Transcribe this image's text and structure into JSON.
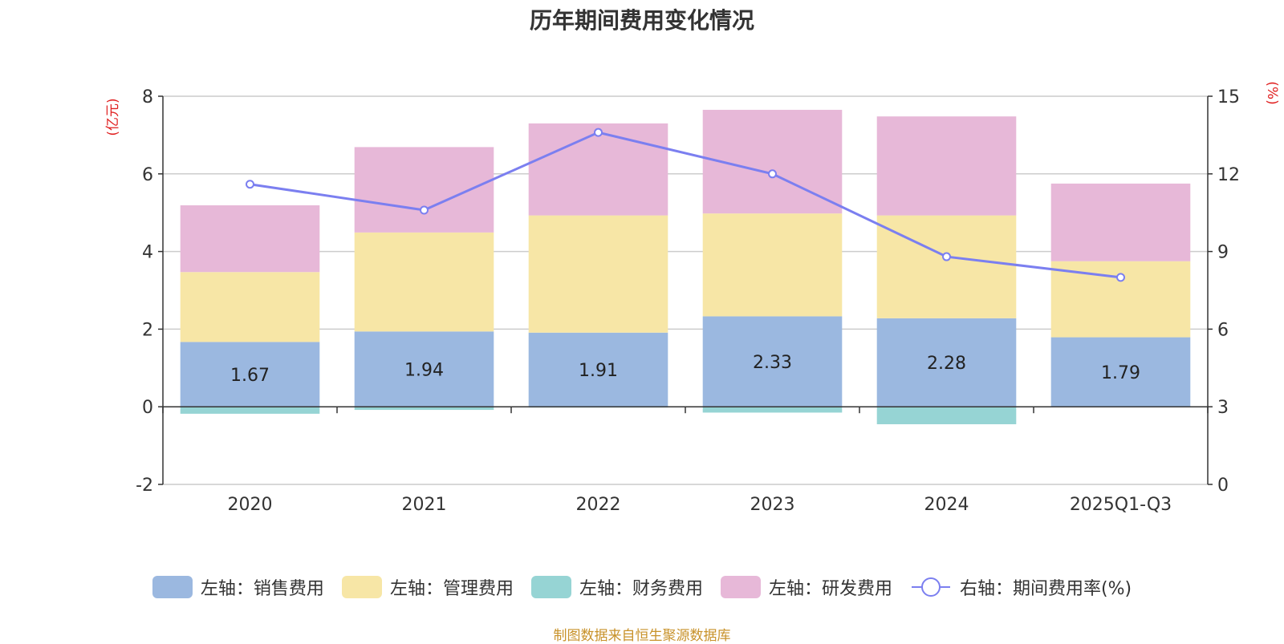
{
  "chart_data": {
    "type": "bar",
    "title": "历年期间费用变化情况",
    "categories": [
      "2020",
      "2021",
      "2022",
      "2023",
      "2024",
      "2025Q1-Q3"
    ],
    "left_axis": {
      "label": "(亿元)",
      "min": -2,
      "max": 8,
      "ticks": [
        -2,
        0,
        2,
        4,
        6,
        8
      ]
    },
    "right_axis": {
      "label": "(%)",
      "min": 0,
      "max": 15,
      "ticks": [
        0,
        3,
        6,
        9,
        12,
        15
      ]
    },
    "series": [
      {
        "name": "左轴：销售费用",
        "axis": "left",
        "kind": "bar",
        "color": "#9bb8e0",
        "values": [
          1.67,
          1.94,
          1.91,
          2.33,
          2.28,
          1.79
        ],
        "show_labels": true
      },
      {
        "name": "左轴：管理费用",
        "axis": "left",
        "kind": "bar",
        "color": "#f7e6a6",
        "values": [
          1.8,
          2.55,
          3.02,
          2.65,
          2.65,
          1.96
        ],
        "show_labels": false
      },
      {
        "name": "左轴：财务费用",
        "axis": "left",
        "kind": "bar",
        "color": "#96d4d4",
        "values": [
          -0.18,
          -0.08,
          -0.02,
          -0.15,
          -0.45,
          0.0
        ],
        "show_labels": false
      },
      {
        "name": "左轴：研发费用",
        "axis": "left",
        "kind": "bar",
        "color": "#e7b8d8",
        "values": [
          1.72,
          2.2,
          2.37,
          2.67,
          2.55,
          2.0
        ],
        "show_labels": false
      },
      {
        "name": "右轴：期间费用率(%)",
        "axis": "right",
        "kind": "line",
        "color": "#7b7ff0",
        "values": [
          11.6,
          10.6,
          13.6,
          12.0,
          8.8,
          8.0
        ],
        "show_labels": false
      }
    ],
    "grid": true,
    "legend_position": "bottom"
  },
  "source_note": "制图数据来自恒生聚源数据库"
}
